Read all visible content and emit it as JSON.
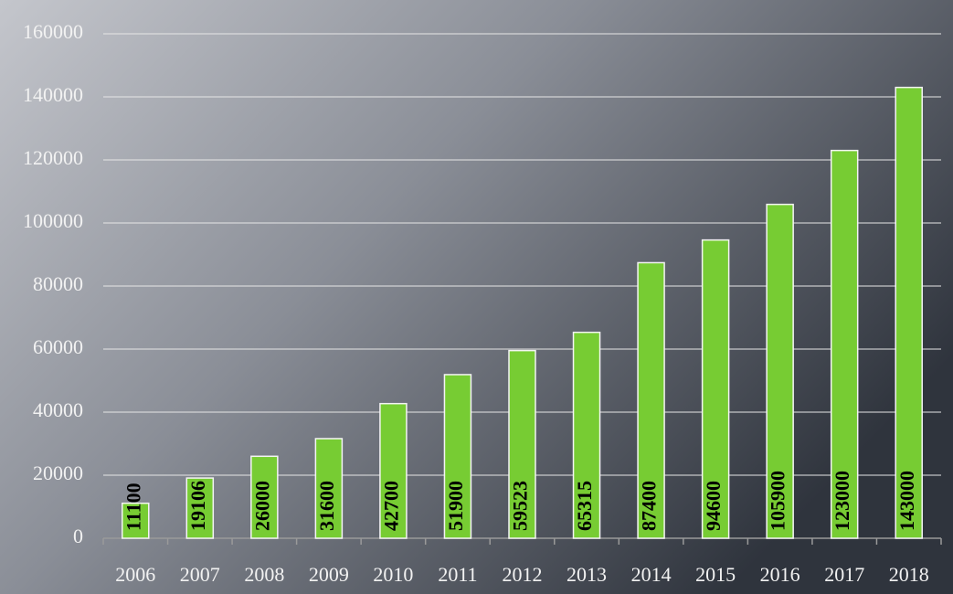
{
  "chart_data": {
    "type": "bar",
    "categories": [
      "2006",
      "2007",
      "2008",
      "2009",
      "2010",
      "2011",
      "2012",
      "2013",
      "2014",
      "2015",
      "2016",
      "2017",
      "2018"
    ],
    "values": [
      11100,
      19106,
      26000,
      31600,
      42700,
      51900,
      59523,
      65315,
      87400,
      94600,
      105900,
      123000,
      143000
    ],
    "color": "#77cc33",
    "ylim": [
      0,
      160000
    ],
    "yticks": [
      0,
      20000,
      40000,
      60000,
      80000,
      100000,
      120000,
      140000,
      160000
    ],
    "grid": true,
    "data_labels": true
  }
}
